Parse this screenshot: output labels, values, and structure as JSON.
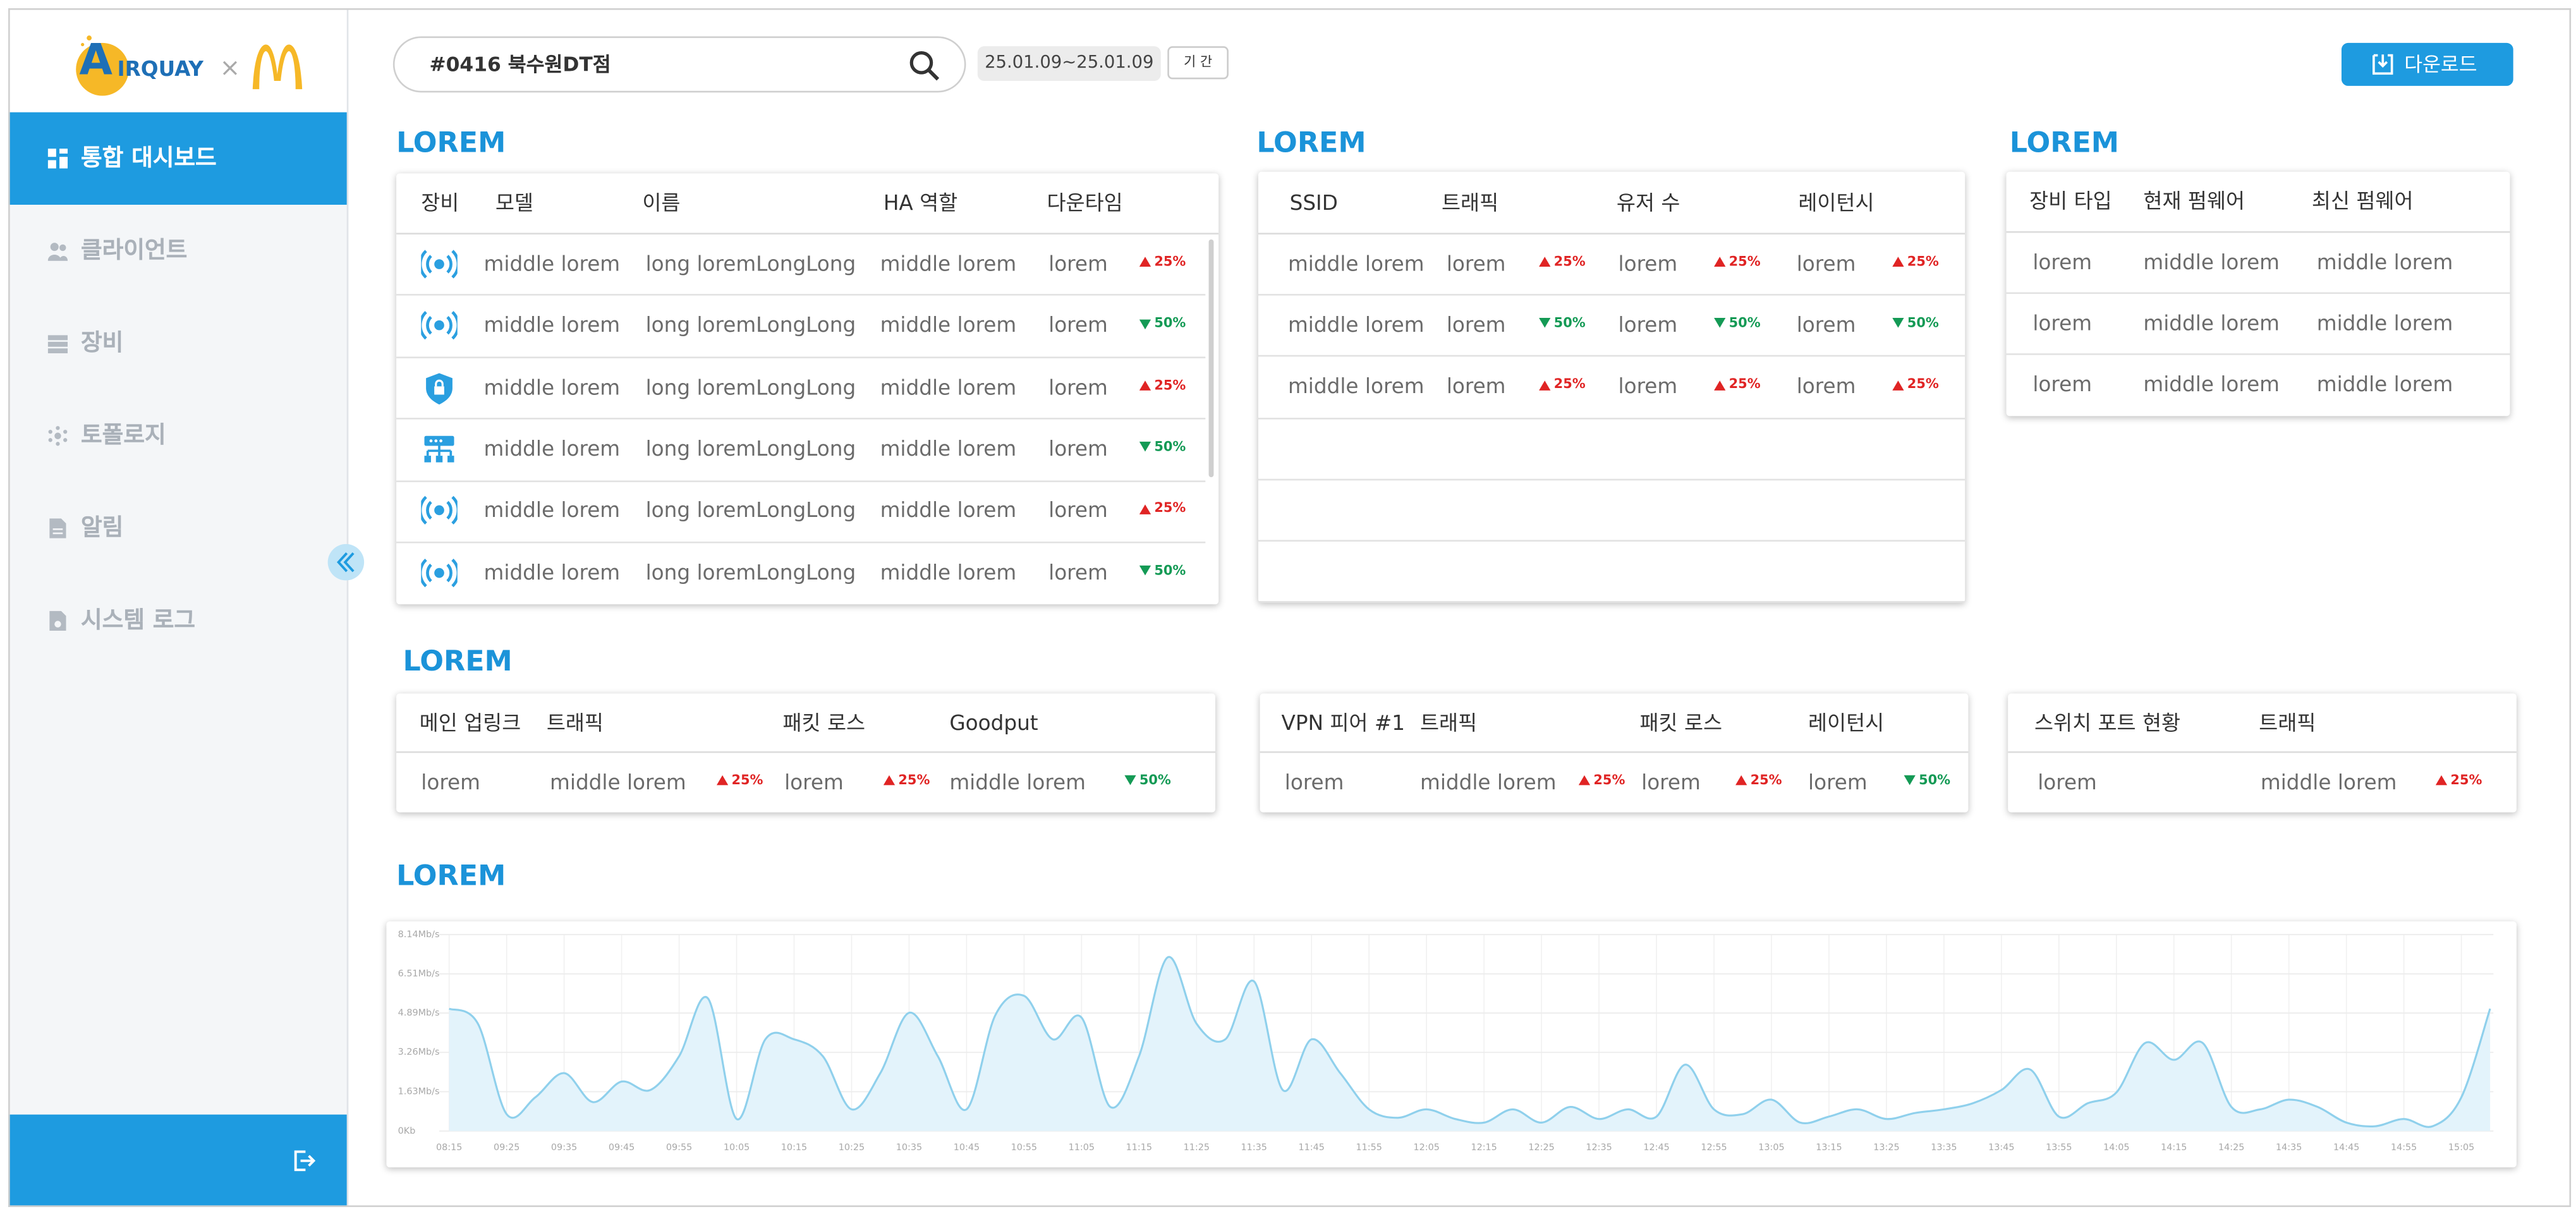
{
  "sidebar": {
    "logo": {
      "initial": "A",
      "brand": "IRQUAY",
      "cross": "×"
    },
    "menu": [
      "통합 대시보드",
      "클라이언트",
      "장비",
      "토폴로지",
      "알림",
      "시스템 로그"
    ],
    "active": 0
  },
  "toolbar": {
    "search": "#0416 북수원DT점",
    "date_range": "25.01.09~25.01.09",
    "period": "기 간",
    "download": "다운로드"
  },
  "panels": [
    {
      "title": "LOREM",
      "table": {
        "headers": [
          "장비",
          "모델",
          "이름",
          "HA 역할",
          "다운타임"
        ],
        "rows": [
          [
            "middle lorem",
            "long loremLongLong",
            "middle lorem",
            "lorem",
            {
              "value": "25%",
              "trend": "up"
            }
          ],
          [
            "middle lorem",
            "long loremLongLong",
            "middle lorem",
            "lorem",
            {
              "value": "50%",
              "trend": "down"
            }
          ],
          [
            "middle lorem",
            "long loremLongLong",
            "middle lorem",
            "lorem",
            {
              "value": "25%",
              "trend": "up"
            }
          ],
          [
            "middle lorem",
            "long loremLongLong",
            "middle lorem",
            "lorem",
            {
              "value": "50%",
              "trend": "down"
            }
          ],
          [
            "middle lorem",
            "long loremLongLong",
            "middle lorem",
            "lorem",
            {
              "value": "25%",
              "trend": "up"
            }
          ],
          [
            "middle lorem",
            "long loremLongLong",
            "middle lorem",
            "lorem",
            {
              "value": "50%",
              "trend": "down"
            }
          ]
        ]
      }
    },
    {
      "title": "LOREM",
      "table": {
        "headers": [
          "SSID",
          "트래픽",
          "유저 수",
          "레이턴시"
        ],
        "rows": [
          [
            "middle lorem",
            "lorem",
            {
              "value": "25%",
              "trend": "up"
            },
            "lorem",
            {
              "value": "25%",
              "trend": "up"
            },
            "lorem",
            {
              "value": "25%",
              "trend": "up"
            }
          ],
          [
            "middle lorem",
            "lorem",
            {
              "value": "50%",
              "trend": "down"
            },
            "lorem",
            {
              "value": "50%",
              "trend": "down"
            },
            "lorem",
            {
              "value": "50%",
              "trend": "down"
            }
          ],
          [
            "middle lorem",
            "lorem",
            {
              "value": "25%",
              "trend": "up"
            },
            "lorem",
            {
              "value": "25%",
              "trend": "up"
            },
            "lorem",
            {
              "value": "25%",
              "trend": "up"
            }
          ]
        ]
      }
    },
    {
      "title": "LOREM",
      "table": {
        "headers": [
          "장비 타입",
          "현재 펌웨어",
          "최신 펌웨어"
        ],
        "rows": [
          [
            "lorem",
            "middle lorem",
            "middle lorem"
          ],
          [
            "lorem",
            "middle lorem",
            "middle lorem"
          ],
          [
            "lorem",
            "middle lorem",
            "middle lorem"
          ]
        ]
      }
    }
  ],
  "summary": {
    "title": "LOREM",
    "tables": [
      {
        "headers": [
          "메인 업링크",
          "트래픽",
          "패킷 로스",
          "Goodput"
        ],
        "rows": [
          [
            "lorem",
            "middle lorem",
            {
              "value": "25%",
              "trend": "up"
            },
            "lorem",
            {
              "value": "25%",
              "trend": "up"
            },
            "middle lorem",
            {
              "value": "50%",
              "trend": "down"
            }
          ]
        ]
      },
      {
        "headers": [
          "VPN 피어 #1",
          "트래픽",
          "패킷 로스",
          "레이턴시"
        ],
        "rows": [
          [
            "lorem",
            "middle lorem",
            {
              "value": "25%",
              "trend": "up"
            },
            "lorem",
            {
              "value": "25%",
              "trend": "up"
            },
            "lorem",
            {
              "value": "50%",
              "trend": "down"
            }
          ]
        ]
      },
      {
        "headers": [
          "스위치 포트 현황",
          "트래픽"
        ],
        "rows": [
          [
            "lorem",
            "middle lorem",
            {
              "value": "25%",
              "trend": "up"
            }
          ]
        ]
      }
    ]
  },
  "traffic": {
    "title": "LOREM",
    "chart": {
      "type": "area",
      "color": "#8fd0ec",
      "fill": "#e3f3fb",
      "grid": true,
      "categories": [
        "08:15",
        null,
        "09:25",
        null,
        "09:35",
        null,
        "09:45",
        null,
        "09:55",
        null,
        "10:05",
        null,
        "10:15",
        null,
        "10:25",
        null,
        "10:35",
        null,
        "10:45",
        null,
        "10:55",
        null,
        "11:05",
        null,
        "11:15",
        null,
        "11:25",
        null,
        "11:35",
        null,
        "11:45",
        null,
        "11:55",
        null,
        "12:05",
        null,
        "12:15",
        null,
        "12:25",
        null,
        "12:35",
        null,
        "12:45",
        null,
        "12:55",
        null,
        "13:05",
        null,
        "13:15",
        null,
        "13:25",
        null,
        "13:35",
        null,
        "13:45",
        null,
        "13:55",
        null,
        "14:05",
        null,
        "14:15",
        null,
        "14:25",
        null,
        "14:35",
        null,
        "14:45",
        null,
        "14:55",
        null,
        "15:05",
        null
      ],
      "values": [
        5.07,
        4.45,
        0.7,
        1.4,
        2.4,
        1.2,
        2.05,
        1.7,
        3.1,
        5.5,
        0.5,
        3.8,
        3.8,
        3.1,
        0.9,
        2.4,
        4.9,
        3.1,
        0.9,
        4.8,
        5.6,
        3.8,
        4.7,
        1,
        3.1,
        7.2,
        4.45,
        3.8,
        6.2,
        1.7,
        3.8,
        2.4,
        0.9,
        0.55,
        0.9,
        0.5,
        0.35,
        0.9,
        0.35,
        1,
        0.5,
        0.9,
        0.6,
        2.75,
        0.9,
        0.7,
        1.3,
        0.35,
        0.6,
        0.9,
        0.5,
        0.75,
        0.9,
        1.15,
        1.7,
        2.55,
        0.6,
        1.15,
        1.6,
        3.65,
        2.95,
        3.65,
        1,
        0.9,
        1.3,
        1,
        0.35,
        0.2,
        0.5,
        0.2,
        1.4,
        5.07
      ],
      "ylim": [
        0,
        8.14
      ],
      "yticks": [
        {
          "value": 0,
          "label": "0Kb"
        },
        {
          "value": 1.63,
          "label": "1.63Mb/s"
        },
        {
          "value": 3.26,
          "label": "3.26Mb/s"
        },
        {
          "value": 4.89,
          "label": "4.89Mb/s"
        },
        {
          "value": 6.51,
          "label": "6.51Mb/s"
        },
        {
          "value": 8.14,
          "label": "8.14Mb/s"
        }
      ]
    }
  }
}
